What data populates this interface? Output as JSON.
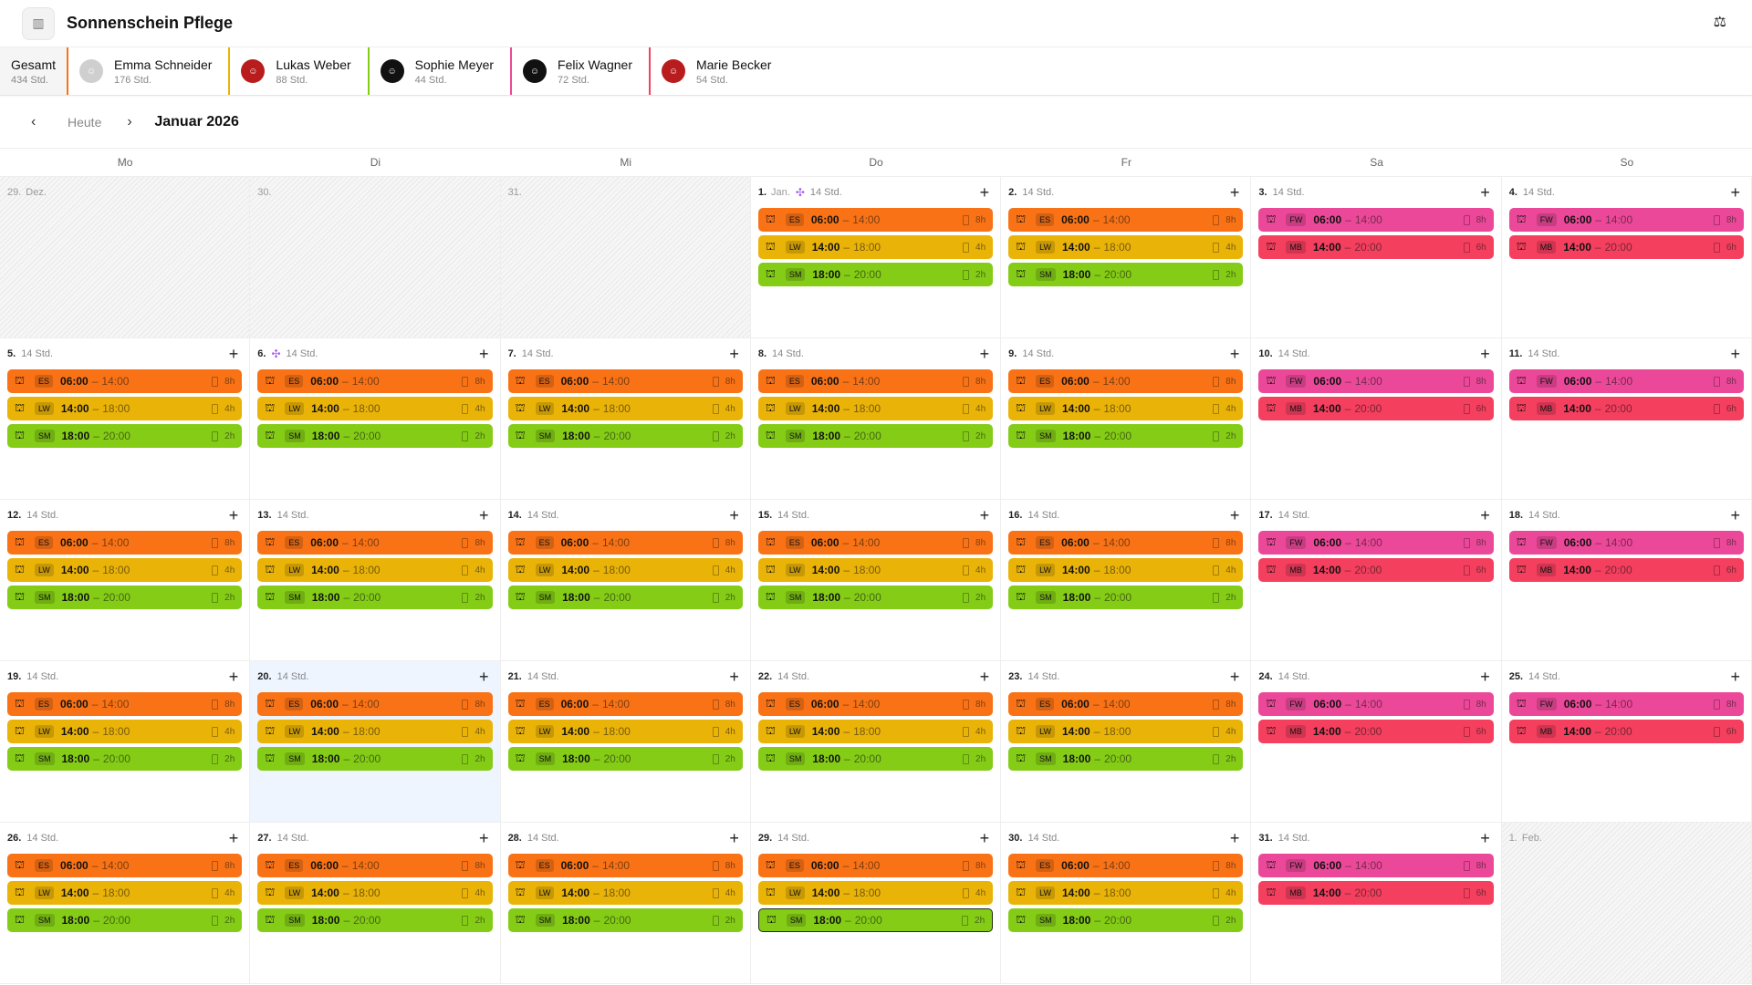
{
  "header": {
    "title": "Sonnenschein Pflege",
    "logo_icon": "building-icon",
    "right_icon": "scale-icon"
  },
  "staff": {
    "total": {
      "name": "Gesamt",
      "hours": "434 Std."
    },
    "members": [
      {
        "name": "Emma Schneider",
        "hours": "176 Std.",
        "color": "#f97316",
        "avatar": "#cfcfcf"
      },
      {
        "name": "Lukas Weber",
        "hours": "88 Std.",
        "color": "#eab308",
        "avatar": "#b91c1c"
      },
      {
        "name": "Sophie Meyer",
        "hours": "44 Std.",
        "color": "#84cc16",
        "avatar": "#111111"
      },
      {
        "name": "Felix Wagner",
        "hours": "72 Std.",
        "color": "#ec4899",
        "avatar": "#111111"
      },
      {
        "name": "Marie Becker",
        "hours": "54 Std.",
        "color": "#f43f5e",
        "avatar": "#b91c1c"
      }
    ]
  },
  "nav": {
    "prev": "‹",
    "today": "Heute",
    "next": "›",
    "month": "Januar 2026"
  },
  "weekdays": [
    "Mo",
    "Di",
    "Mi",
    "Do",
    "Fr",
    "Sa",
    "So"
  ],
  "patterns": {
    "weekday": [
      {
        "initials": "ES",
        "start": "06:00",
        "end": "14:00",
        "dur": "8h",
        "color": "#f97316"
      },
      {
        "initials": "LW",
        "start": "14:00",
        "end": "18:00",
        "dur": "4h",
        "color": "#eab308"
      },
      {
        "initials": "SM",
        "start": "18:00",
        "end": "20:00",
        "dur": "2h",
        "color": "#84cc16"
      }
    ],
    "weekend": [
      {
        "initials": "FW",
        "start": "06:00",
        "end": "14:00",
        "dur": "8h",
        "color": "#ec4899"
      },
      {
        "initials": "MB",
        "start": "14:00",
        "end": "20:00",
        "dur": "6h",
        "color": "#f43f5e"
      }
    ]
  },
  "days": [
    {
      "day": "29.",
      "month": "Dez.",
      "out": true
    },
    {
      "day": "30.",
      "out": true
    },
    {
      "day": "31.",
      "out": true
    },
    {
      "day": "1.",
      "month": "Jan.",
      "event": true,
      "hours": "14 Std.",
      "pattern": "weekday"
    },
    {
      "day": "2.",
      "hours": "14 Std.",
      "pattern": "weekday"
    },
    {
      "day": "3.",
      "hours": "14 Std.",
      "pattern": "weekend"
    },
    {
      "day": "4.",
      "hours": "14 Std.",
      "pattern": "weekend"
    },
    {
      "day": "5.",
      "hours": "14 Std.",
      "pattern": "weekday"
    },
    {
      "day": "6.",
      "event": true,
      "hours": "14 Std.",
      "pattern": "weekday"
    },
    {
      "day": "7.",
      "hours": "14 Std.",
      "pattern": "weekday"
    },
    {
      "day": "8.",
      "hours": "14 Std.",
      "pattern": "weekday"
    },
    {
      "day": "9.",
      "hours": "14 Std.",
      "pattern": "weekday"
    },
    {
      "day": "10.",
      "hours": "14 Std.",
      "pattern": "weekend"
    },
    {
      "day": "11.",
      "hours": "14 Std.",
      "pattern": "weekend"
    },
    {
      "day": "12.",
      "hours": "14 Std.",
      "pattern": "weekday"
    },
    {
      "day": "13.",
      "hours": "14 Std.",
      "pattern": "weekday"
    },
    {
      "day": "14.",
      "hours": "14 Std.",
      "pattern": "weekday"
    },
    {
      "day": "15.",
      "hours": "14 Std.",
      "pattern": "weekday"
    },
    {
      "day": "16.",
      "hours": "14 Std.",
      "pattern": "weekday"
    },
    {
      "day": "17.",
      "hours": "14 Std.",
      "pattern": "weekend"
    },
    {
      "day": "18.",
      "hours": "14 Std.",
      "pattern": "weekend"
    },
    {
      "day": "19.",
      "hours": "14 Std.",
      "pattern": "weekday"
    },
    {
      "day": "20.",
      "today": true,
      "hours": "14 Std.",
      "pattern": "weekday"
    },
    {
      "day": "21.",
      "hours": "14 Std.",
      "pattern": "weekday"
    },
    {
      "day": "22.",
      "hours": "14 Std.",
      "pattern": "weekday"
    },
    {
      "day": "23.",
      "hours": "14 Std.",
      "pattern": "weekday"
    },
    {
      "day": "24.",
      "hours": "14 Std.",
      "pattern": "weekend"
    },
    {
      "day": "25.",
      "hours": "14 Std.",
      "pattern": "weekend"
    },
    {
      "day": "26.",
      "hours": "14 Std.",
      "pattern": "weekday"
    },
    {
      "day": "27.",
      "hours": "14 Std.",
      "pattern": "weekday"
    },
    {
      "day": "28.",
      "hours": "14 Std.",
      "pattern": "weekday"
    },
    {
      "day": "29.",
      "hours": "14 Std.",
      "pattern": "weekday",
      "selected_shift": "SM"
    },
    {
      "day": "30.",
      "hours": "14 Std.",
      "pattern": "weekday"
    },
    {
      "day": "31.",
      "hours": "14 Std.",
      "pattern": "weekend"
    },
    {
      "day": "1.",
      "month": "Feb.",
      "out": true
    }
  ]
}
